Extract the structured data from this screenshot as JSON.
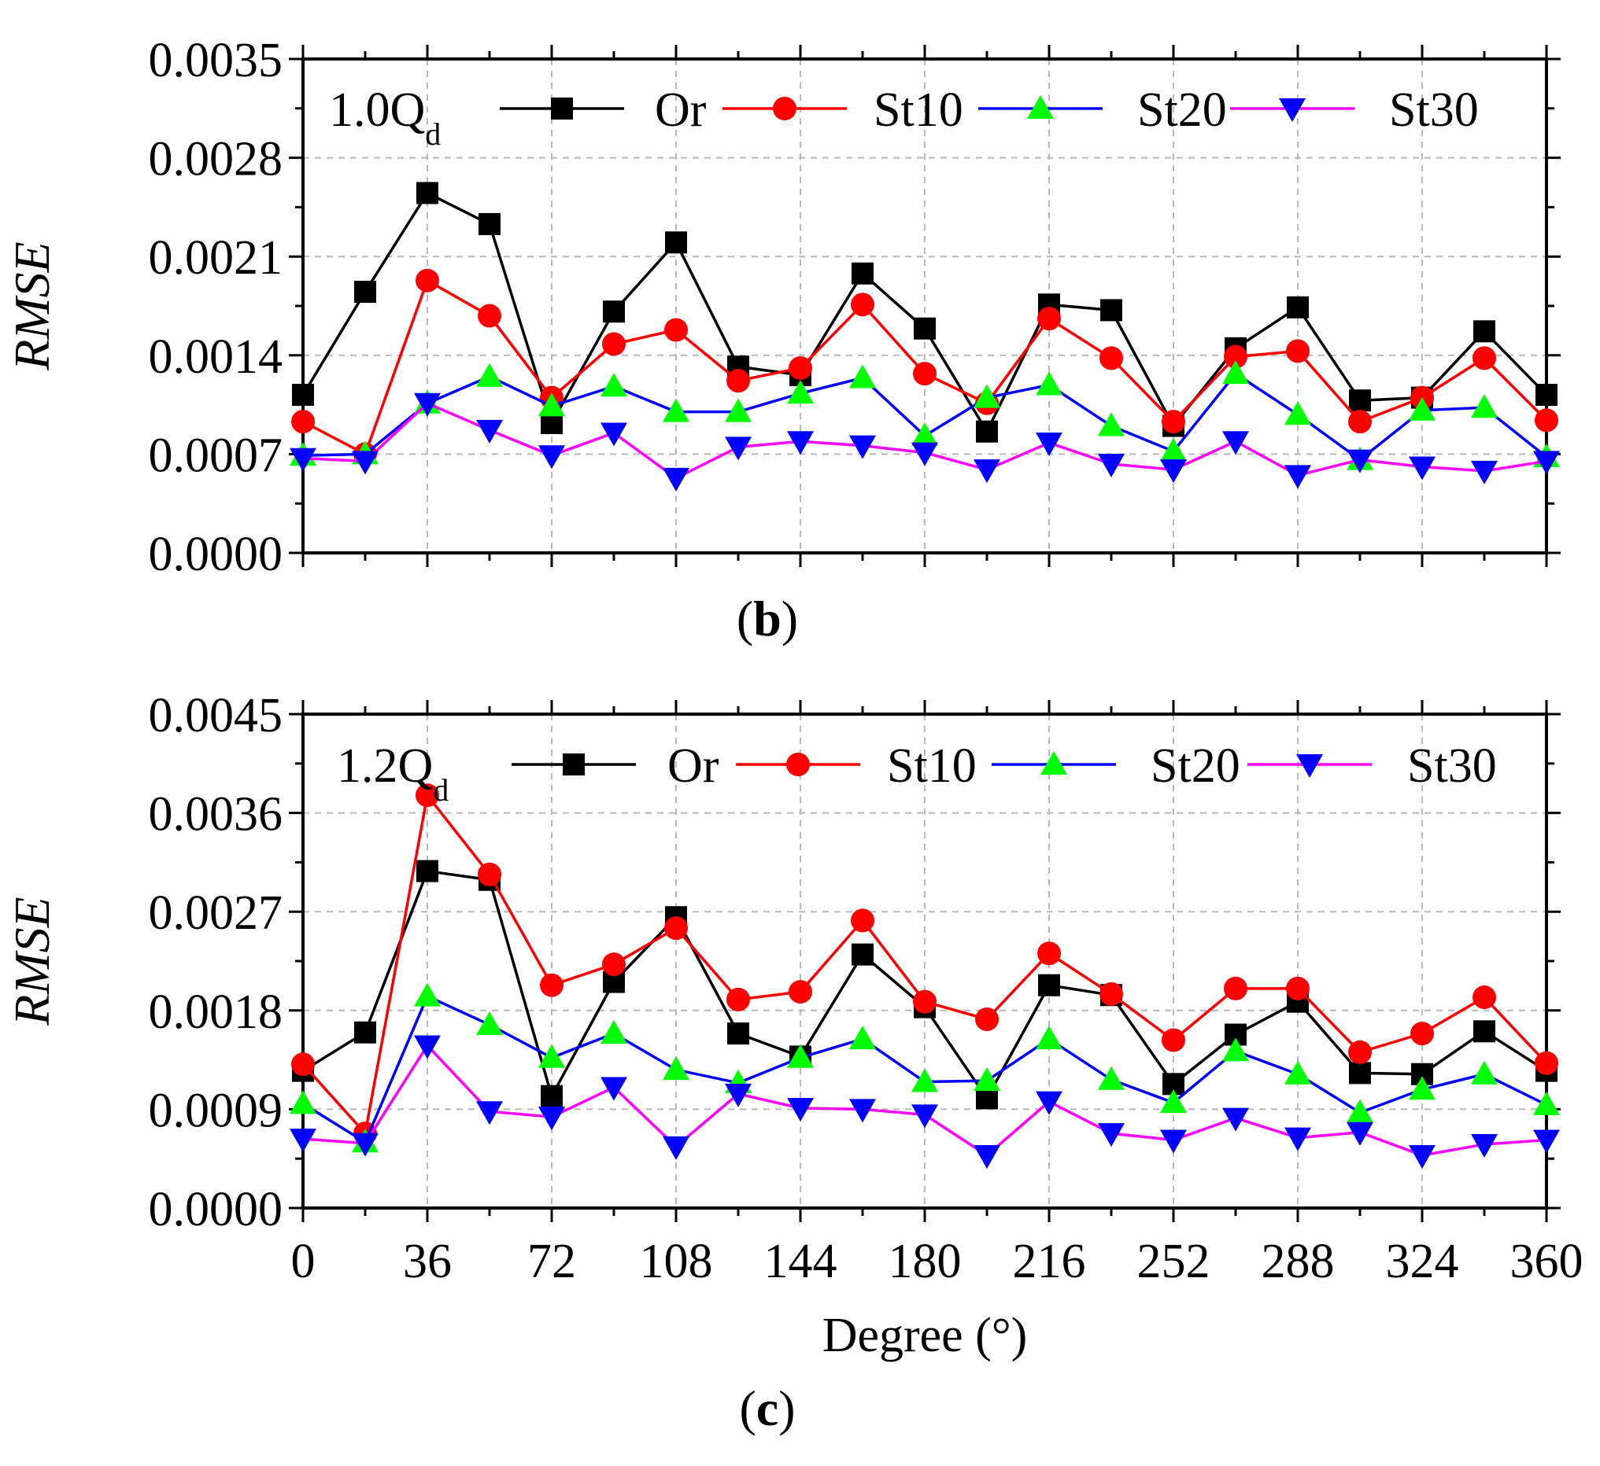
{
  "chart_data": [
    {
      "panel": "b",
      "type": "line",
      "condition_main": "1.0Q",
      "condition_sub": "d",
      "panel_label": {
        "open": "(",
        "letter": "b",
        "close": ")"
      },
      "ylabel": "RMSE",
      "xlabel": "",
      "ylim": [
        0,
        0.0035
      ],
      "yticks": [
        "0.0000",
        "0.0007",
        "0.0014",
        "0.0021",
        "0.0028",
        "0.0035"
      ],
      "ytick_values": [
        0,
        0.0007,
        0.0014,
        0.0021,
        0.0028,
        0.0035
      ],
      "xlim": [
        0,
        360
      ],
      "xticks": [],
      "grid": true,
      "x": [
        0,
        18,
        36,
        54,
        72,
        90,
        108,
        126,
        144,
        162,
        180,
        198,
        216,
        234,
        252,
        270,
        288,
        306,
        324,
        342,
        360
      ],
      "series": [
        {
          "name": "Or",
          "color": "#000000",
          "marker": "square",
          "values": [
            0.00112,
            0.00185,
            0.00255,
            0.00233,
            0.00092,
            0.00171,
            0.0022,
            0.00132,
            0.00126,
            0.00198,
            0.00159,
            0.00086,
            0.00176,
            0.00172,
            0.0009,
            0.00145,
            0.00174,
            0.00108,
            0.0011,
            0.00157,
            0.00112
          ]
        },
        {
          "name": "St10",
          "color": "#ff0000",
          "marker": "circle",
          "values": [
            0.00093,
            0.0007,
            0.00193,
            0.00168,
            0.0011,
            0.00148,
            0.00158,
            0.00122,
            0.00131,
            0.00176,
            0.00127,
            0.00106,
            0.00166,
            0.00138,
            0.00093,
            0.00139,
            0.00143,
            0.00093,
            0.0011,
            0.00138,
            0.00094
          ]
        },
        {
          "name": "St20",
          "color": "#00ff00",
          "line_color": "#0000ff",
          "marker": "triangle-up",
          "values": [
            0.00069,
            0.0007,
            0.00106,
            0.00125,
            0.00104,
            0.00118,
            0.001,
            0.001,
            0.00113,
            0.00124,
            0.00083,
            0.0011,
            0.00119,
            0.0009,
            0.00072,
            0.00127,
            0.00098,
            0.00066,
            0.00101,
            0.00103,
            0.00068
          ]
        },
        {
          "name": "St30",
          "color": "#0000ff",
          "line_color": "#ff00ff",
          "marker": "triangle-down",
          "values": [
            0.00067,
            0.00065,
            0.00106,
            0.00087,
            0.00069,
            0.00085,
            0.00053,
            0.00075,
            0.00079,
            0.00076,
            0.00071,
            0.00059,
            0.00078,
            0.00063,
            0.00059,
            0.00079,
            0.00055,
            0.00066,
            0.00061,
            0.00058,
            0.00065
          ]
        }
      ]
    },
    {
      "panel": "c",
      "type": "line",
      "condition_main": "1.2Q",
      "condition_sub": "d",
      "panel_label": {
        "open": "(",
        "letter": "c",
        "close": ")"
      },
      "ylabel": "RMSE",
      "xlabel": "Degree (°)",
      "ylim": [
        0,
        0.0045
      ],
      "yticks": [
        "0.0000",
        "0.0009",
        "0.0018",
        "0.0027",
        "0.0036",
        "0.0045"
      ],
      "ytick_values": [
        0,
        0.0009,
        0.0018,
        0.0027,
        0.0036,
        0.0045
      ],
      "xlim": [
        0,
        360
      ],
      "xticks": [
        "0",
        "36",
        "72",
        "108",
        "144",
        "180",
        "216",
        "252",
        "288",
        "324",
        "360"
      ],
      "grid": true,
      "x": [
        0,
        18,
        36,
        54,
        72,
        90,
        108,
        126,
        144,
        162,
        180,
        198,
        216,
        234,
        252,
        270,
        288,
        306,
        324,
        342,
        360
      ],
      "series": [
        {
          "name": "Or",
          "color": "#000000",
          "marker": "square",
          "values": [
            0.00125,
            0.0016,
            0.00307,
            0.00299,
            0.00102,
            0.00206,
            0.00265,
            0.00159,
            0.00138,
            0.00231,
            0.00183,
            0.001,
            0.00203,
            0.00194,
            0.00113,
            0.00158,
            0.00188,
            0.00123,
            0.00122,
            0.00161,
            0.00125
          ]
        },
        {
          "name": "St10",
          "color": "#ff0000",
          "marker": "circle",
          "values": [
            0.00131,
            0.00068,
            0.00376,
            0.00304,
            0.00203,
            0.00222,
            0.00255,
            0.0019,
            0.00197,
            0.00262,
            0.00188,
            0.00172,
            0.00232,
            0.00195,
            0.00153,
            0.002,
            0.002,
            0.00142,
            0.00159,
            0.00192,
            0.00132
          ]
        },
        {
          "name": "St20",
          "color": "#00ff00",
          "line_color": "#0000ff",
          "marker": "triangle-up",
          "values": [
            0.00095,
            0.0006,
            0.00193,
            0.00167,
            0.00137,
            0.00159,
            0.00126,
            0.00114,
            0.00137,
            0.00154,
            0.00115,
            0.00116,
            0.00154,
            0.00117,
            0.00096,
            0.00143,
            0.00122,
            0.00087,
            0.00108,
            0.00122,
            0.00094
          ]
        },
        {
          "name": "St30",
          "color": "#0000ff",
          "line_color": "#ff00ff",
          "marker": "triangle-down",
          "values": [
            0.00063,
            0.00059,
            0.00148,
            0.00088,
            0.00083,
            0.0011,
            0.00056,
            0.00104,
            0.00091,
            0.0009,
            0.00085,
            0.00048,
            0.00097,
            0.00068,
            0.00062,
            0.00082,
            0.00064,
            0.00069,
            0.00048,
            0.00058,
            0.00062
          ]
        }
      ]
    }
  ]
}
